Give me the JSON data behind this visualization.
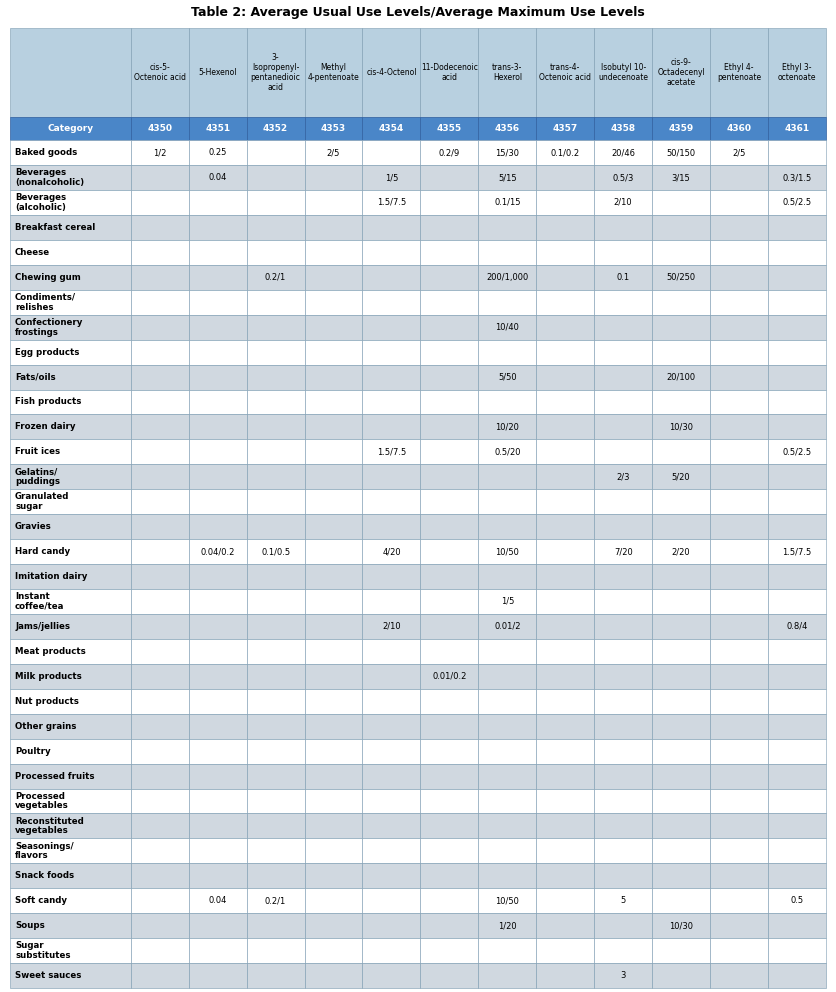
{
  "title": "Table 2: Average Usual Use Levels/Average Maximum Use Levels",
  "header_row1": [
    "",
    "cis-5-\nOctenoic acid",
    "5-Hexenol",
    "3-\nIsopropenyl-\npentanedioic\nacid",
    "Methyl\n4-pentenoate",
    "cis-4-Octenol",
    "11-Dodecenoic\nacid",
    "trans-3-\nHexerol",
    "trans-4-\nOctenoic acid",
    "Isobutyl 10-\nundecenoate",
    "cis-9-\nOctadecenyl\nacetate",
    "Ethyl 4-\npentenoate",
    "Ethyl 3-\noctenoate"
  ],
  "header_row2": [
    "Category",
    "4350",
    "4351",
    "4352",
    "4353",
    "4354",
    "4355",
    "4356",
    "4357",
    "4358",
    "4359",
    "4360",
    "4361"
  ],
  "rows": [
    [
      "Baked goods",
      "1/2",
      "0.25",
      "",
      "2/5",
      "",
      "0.2/9",
      "15/30",
      "0.1/0.2",
      "20/46",
      "50/150",
      "2/5",
      ""
    ],
    [
      "Beverages\n(nonalcoholic)",
      "",
      "0.04",
      "",
      "",
      "1/5",
      "",
      "5/15",
      "",
      "0.5/3",
      "3/15",
      "",
      "0.3/1.5"
    ],
    [
      "Beverages\n(alcoholic)",
      "",
      "",
      "",
      "",
      "1.5/7.5",
      "",
      "0.1/15",
      "",
      "2/10",
      "",
      "",
      "0.5/2.5"
    ],
    [
      "Breakfast cereal",
      "",
      "",
      "",
      "",
      "",
      "",
      "",
      "",
      "",
      "",
      "",
      ""
    ],
    [
      "Cheese",
      "",
      "",
      "",
      "",
      "",
      "",
      "",
      "",
      "",
      "",
      "",
      ""
    ],
    [
      "Chewing gum",
      "",
      "",
      "0.2/1",
      "",
      "",
      "",
      "200/1,000",
      "",
      "0.1",
      "50/250",
      "",
      ""
    ],
    [
      "Condiments/\nrelishes",
      "",
      "",
      "",
      "",
      "",
      "",
      "",
      "",
      "",
      "",
      "",
      ""
    ],
    [
      "Confectionery\nfrostings",
      "",
      "",
      "",
      "",
      "",
      "",
      "10/40",
      "",
      "",
      "",
      "",
      ""
    ],
    [
      "Egg products",
      "",
      "",
      "",
      "",
      "",
      "",
      "",
      "",
      "",
      "",
      "",
      ""
    ],
    [
      "Fats/oils",
      "",
      "",
      "",
      "",
      "",
      "",
      "5/50",
      "",
      "",
      "20/100",
      "",
      ""
    ],
    [
      "Fish products",
      "",
      "",
      "",
      "",
      "",
      "",
      "",
      "",
      "",
      "",
      "",
      ""
    ],
    [
      "Frozen dairy",
      "",
      "",
      "",
      "",
      "",
      "",
      "10/20",
      "",
      "",
      "10/30",
      "",
      ""
    ],
    [
      "Fruit ices",
      "",
      "",
      "",
      "",
      "1.5/7.5",
      "",
      "0.5/20",
      "",
      "",
      "",
      "",
      "0.5/2.5"
    ],
    [
      "Gelatins/\npuddings",
      "",
      "",
      "",
      "",
      "",
      "",
      "",
      "",
      "2/3",
      "5/20",
      "",
      ""
    ],
    [
      "Granulated\nsugar",
      "",
      "",
      "",
      "",
      "",
      "",
      "",
      "",
      "",
      "",
      "",
      ""
    ],
    [
      "Gravies",
      "",
      "",
      "",
      "",
      "",
      "",
      "",
      "",
      "",
      "",
      "",
      ""
    ],
    [
      "Hard candy",
      "",
      "0.04/0.2",
      "0.1/0.5",
      "",
      "4/20",
      "",
      "10/50",
      "",
      "7/20",
      "2/20",
      "",
      "1.5/7.5"
    ],
    [
      "Imitation dairy",
      "",
      "",
      "",
      "",
      "",
      "",
      "",
      "",
      "",
      "",
      "",
      ""
    ],
    [
      "Instant\ncoffee/tea",
      "",
      "",
      "",
      "",
      "",
      "",
      "1/5",
      "",
      "",
      "",
      "",
      ""
    ],
    [
      "Jams/jellies",
      "",
      "",
      "",
      "",
      "2/10",
      "",
      "0.01/2",
      "",
      "",
      "",
      "",
      "0.8/4"
    ],
    [
      "Meat products",
      "",
      "",
      "",
      "",
      "",
      "",
      "",
      "",
      "",
      "",
      "",
      ""
    ],
    [
      "Milk products",
      "",
      "",
      "",
      "",
      "",
      "0.01/0.2",
      "",
      "",
      "",
      "",
      "",
      ""
    ],
    [
      "Nut products",
      "",
      "",
      "",
      "",
      "",
      "",
      "",
      "",
      "",
      "",
      "",
      ""
    ],
    [
      "Other grains",
      "",
      "",
      "",
      "",
      "",
      "",
      "",
      "",
      "",
      "",
      "",
      ""
    ],
    [
      "Poultry",
      "",
      "",
      "",
      "",
      "",
      "",
      "",
      "",
      "",
      "",
      "",
      ""
    ],
    [
      "Processed fruits",
      "",
      "",
      "",
      "",
      "",
      "",
      "",
      "",
      "",
      "",
      "",
      ""
    ],
    [
      "Processed\nvegetables",
      "",
      "",
      "",
      "",
      "",
      "",
      "",
      "",
      "",
      "",
      "",
      ""
    ],
    [
      "Reconstituted\nvegetables",
      "",
      "",
      "",
      "",
      "",
      "",
      "",
      "",
      "",
      "",
      "",
      ""
    ],
    [
      "Seasonings/\nflavors",
      "",
      "",
      "",
      "",
      "",
      "",
      "",
      "",
      "",
      "",
      "",
      ""
    ],
    [
      "Snack foods",
      "",
      "",
      "",
      "",
      "",
      "",
      "",
      "",
      "",
      "",
      "",
      ""
    ],
    [
      "Soft candy",
      "",
      "0.04",
      "0.2/1",
      "",
      "",
      "",
      "10/50",
      "",
      "5",
      "",
      "",
      "0.5"
    ],
    [
      "Soups",
      "",
      "",
      "",
      "",
      "",
      "",
      "1/20",
      "",
      "",
      "10/30",
      "",
      ""
    ],
    [
      "Sugar\nsubstitutes",
      "",
      "",
      "",
      "",
      "",
      "",
      "",
      "",
      "",
      "",
      "",
      ""
    ],
    [
      "Sweet sauces",
      "",
      "",
      "",
      "",
      "",
      "",
      "",
      "",
      "3",
      "",
      "",
      ""
    ]
  ],
  "header_bg": "#b8d0e0",
  "header2_bg": "#4a86c8",
  "row_bg_odd": "#ffffff",
  "row_bg_even": "#d0d8e0",
  "header_text_color": "#000000",
  "header2_text_color": "#ffffff",
  "border_color": "#7a9ab0",
  "title_fontsize": 9,
  "col_widths": [
    1.5,
    0.72,
    0.72,
    0.72,
    0.72,
    0.72,
    0.72,
    0.72,
    0.72,
    0.72,
    0.72,
    0.72,
    0.72
  ]
}
